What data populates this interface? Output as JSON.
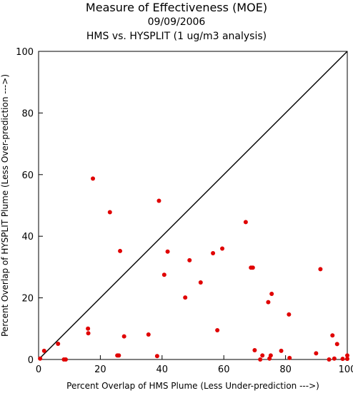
{
  "chart_data": {
    "type": "scatter",
    "title": "Measure of Effectiveness (MOE)",
    "subtitle_date": "09/09/2006",
    "subtitle_analysis": "HMS vs. HYSPLIT  (1 ug/m3 analysis)",
    "xlabel": "Percent Overlap of HMS Plume (Less Under-prediction --->)",
    "ylabel": "Percent Overlap of HYSPLIT Plume (Less Over-prediction --->)",
    "xlim": [
      0,
      100
    ],
    "ylim": [
      0,
      100
    ],
    "x_ticks": [
      "0",
      "20",
      "40",
      "60",
      "80",
      "100"
    ],
    "y_ticks": [
      "0",
      "20",
      "40",
      "60",
      "80",
      "100"
    ],
    "grid": false,
    "reference_line": "1:1 diagonal",
    "point_color": "#e00000",
    "points": [
      [
        0.5,
        0.3
      ],
      [
        1.8,
        2.8
      ],
      [
        6.3,
        5.1
      ],
      [
        8.2,
        0.0
      ],
      [
        8.8,
        0.0
      ],
      [
        16.0,
        10.0
      ],
      [
        16.1,
        8.5
      ],
      [
        17.6,
        58.7
      ],
      [
        23.1,
        47.8
      ],
      [
        25.5,
        1.3
      ],
      [
        26.0,
        1.3
      ],
      [
        26.4,
        35.2
      ],
      [
        27.7,
        7.5
      ],
      [
        35.6,
        8.1
      ],
      [
        38.4,
        1.1
      ],
      [
        39.0,
        51.5
      ],
      [
        40.7,
        27.5
      ],
      [
        41.8,
        35.0
      ],
      [
        47.5,
        20.1
      ],
      [
        48.9,
        32.2
      ],
      [
        52.5,
        25.0
      ],
      [
        56.5,
        34.5
      ],
      [
        57.9,
        9.5
      ],
      [
        59.5,
        36.0
      ],
      [
        67.1,
        44.6
      ],
      [
        68.8,
        29.8
      ],
      [
        69.4,
        29.8
      ],
      [
        70.0,
        3.0
      ],
      [
        71.8,
        0.0
      ],
      [
        72.5,
        1.3
      ],
      [
        74.4,
        18.6
      ],
      [
        74.8,
        0.3
      ],
      [
        75.2,
        1.3
      ],
      [
        75.5,
        21.3
      ],
      [
        78.6,
        2.8
      ],
      [
        81.1,
        14.6
      ],
      [
        81.3,
        0.5
      ],
      [
        89.9,
        2.0
      ],
      [
        91.3,
        29.3
      ],
      [
        94.1,
        0.0
      ],
      [
        95.2,
        7.8
      ],
      [
        95.8,
        0.3
      ],
      [
        96.7,
        5.0
      ],
      [
        98.5,
        0.2
      ],
      [
        100.0,
        0.2
      ],
      [
        100.0,
        1.3
      ]
    ]
  }
}
